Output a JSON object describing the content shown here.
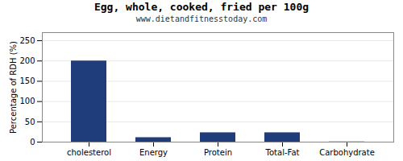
{
  "chart_data": {
    "type": "bar",
    "title": "Egg, whole, cooked, fried per 100g",
    "subtitle": "www.dietandfitnesstoday.com",
    "categories": [
      "cholesterol",
      "Energy",
      "Protein",
      "Total-Fat",
      "Carbohydrate"
    ],
    "values": [
      200,
      11,
      23,
      23,
      0.5
    ],
    "color": "#1F3D7A",
    "ylabel": "Percentage of RDH (%)",
    "ylim": [
      0,
      270
    ],
    "yticks": [
      0,
      50,
      100,
      150,
      200,
      250
    ],
    "grid": true
  }
}
